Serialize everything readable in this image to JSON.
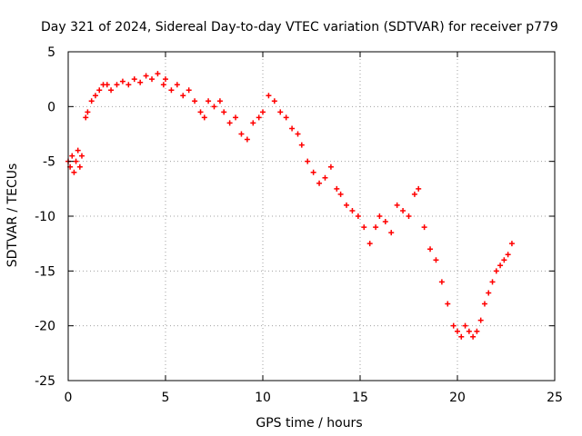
{
  "chart_data": {
    "type": "scatter",
    "title": "Day 321 of 2024, Sidereal Day-to-day VTEC variation (SDTVAR) for receiver p779",
    "xlabel": "GPS time / hours",
    "ylabel": "SDTVAR / TECUs",
    "xlim": [
      0,
      25
    ],
    "ylim": [
      -25,
      5
    ],
    "xticks": [
      0,
      5,
      10,
      15,
      20,
      25
    ],
    "yticks": [
      -25,
      -20,
      -15,
      -10,
      -5,
      0,
      5
    ],
    "xtick_labels": [
      "0",
      "5",
      "10",
      "15",
      "20",
      "25"
    ],
    "ytick_labels": [
      "-25",
      "-20",
      "-15",
      "-10",
      "-5",
      "0",
      "5"
    ],
    "grid": true,
    "marker": "+",
    "series": [
      {
        "name": "SDTVAR",
        "color": "#ff0000",
        "x": [
          0.0,
          0.1,
          0.2,
          0.3,
          0.4,
          0.5,
          0.6,
          0.7,
          0.9,
          1.0,
          1.2,
          1.4,
          1.6,
          1.8,
          2.0,
          2.2,
          2.5,
          2.8,
          3.1,
          3.4,
          3.7,
          4.0,
          4.3,
          4.6,
          4.9,
          5.0,
          5.3,
          5.6,
          5.9,
          6.2,
          6.5,
          6.8,
          7.0,
          7.2,
          7.5,
          7.8,
          8.0,
          8.3,
          8.6,
          8.9,
          9.2,
          9.5,
          9.8,
          10.0,
          10.3,
          10.6,
          10.9,
          11.2,
          11.5,
          11.8,
          12.0,
          12.3,
          12.6,
          12.9,
          13.2,
          13.5,
          13.8,
          14.0,
          14.3,
          14.6,
          14.9,
          15.2,
          15.5,
          15.8,
          16.0,
          16.3,
          16.6,
          16.9,
          17.2,
          17.5,
          17.8,
          18.0,
          18.3,
          18.6,
          18.9,
          19.2,
          19.5,
          19.8,
          20.0,
          20.2,
          20.4,
          20.6,
          20.8,
          21.0,
          21.2,
          21.4,
          21.6,
          21.8,
          22.0,
          22.2,
          22.4,
          22.6,
          22.8
        ],
        "y": [
          -5.0,
          -5.5,
          -4.5,
          -6.0,
          -5.0,
          -4.0,
          -5.5,
          -4.5,
          -1.0,
          -0.5,
          0.5,
          1.0,
          1.5,
          2.0,
          2.0,
          1.5,
          2.0,
          2.3,
          2.0,
          2.5,
          2.2,
          2.8,
          2.5,
          3.0,
          2.0,
          2.5,
          1.5,
          2.0,
          1.0,
          1.5,
          0.5,
          -0.5,
          -1.0,
          0.5,
          0.0,
          0.5,
          -0.5,
          -1.5,
          -1.0,
          -2.5,
          -3.0,
          -1.5,
          -1.0,
          -0.5,
          1.0,
          0.5,
          -0.5,
          -1.0,
          -2.0,
          -2.5,
          -3.5,
          -5.0,
          -6.0,
          -7.0,
          -6.5,
          -5.5,
          -7.5,
          -8.0,
          -9.0,
          -9.5,
          -10.0,
          -11.0,
          -12.5,
          -11.0,
          -10.0,
          -10.5,
          -11.5,
          -9.0,
          -9.5,
          -10.0,
          -8.0,
          -7.5,
          -11.0,
          -13.0,
          -14.0,
          -16.0,
          -18.0,
          -20.0,
          -20.5,
          -21.0,
          -20.0,
          -20.5,
          -21.0,
          -20.5,
          -19.5,
          -18.0,
          -17.0,
          -16.0,
          -15.0,
          -14.5,
          -14.0,
          -13.5,
          -12.5
        ]
      }
    ]
  }
}
